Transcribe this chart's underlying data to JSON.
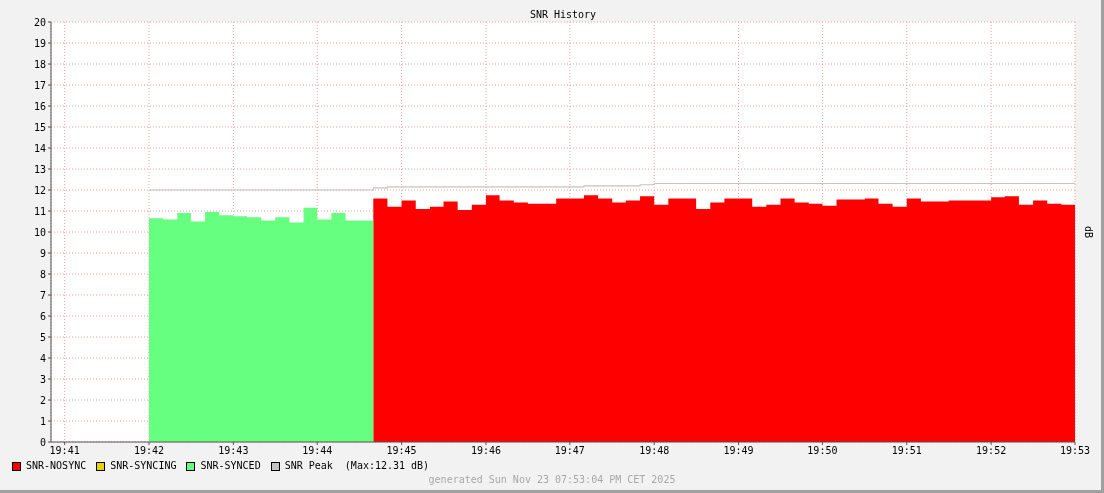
{
  "chart_data": {
    "type": "area",
    "title": "SNR History",
    "ylabel": "dB",
    "x": [
      19.7,
      19.7028,
      19.7056,
      19.7083,
      19.7111,
      19.7139,
      19.7167,
      19.7194,
      19.7222,
      19.725,
      19.7278,
      19.7306,
      19.7333,
      19.7361,
      19.7389,
      19.7417,
      19.7444,
      19.7472,
      19.75,
      19.7528,
      19.7556,
      19.7583,
      19.7611,
      19.7639,
      19.7667,
      19.7694,
      19.7722,
      19.775,
      19.7778,
      19.7806,
      19.7833,
      19.7861,
      19.7889,
      19.7917,
      19.7944,
      19.7972,
      19.8,
      19.8028,
      19.8056,
      19.8083,
      19.8111,
      19.8139,
      19.8167,
      19.8194,
      19.8222,
      19.825,
      19.8278,
      19.8306,
      19.8333,
      19.8361,
      19.8389,
      19.8417,
      19.8444,
      19.8472,
      19.85,
      19.8528,
      19.8556,
      19.8583,
      19.8611,
      19.8639,
      19.8667,
      19.8694,
      19.8722,
      19.875,
      19.8778,
      19.8806,
      19.8833
    ],
    "series": [
      {
        "name": "SNR-NOSYNC",
        "color": "#ff0000",
        "values": [
          null,
          null,
          null,
          null,
          null,
          null,
          null,
          null,
          null,
          null,
          null,
          null,
          null,
          null,
          null,
          null,
          11.6,
          11.2,
          11.5,
          11.1,
          11.2,
          11.45,
          11.05,
          11.3,
          11.75,
          11.5,
          11.4,
          11.35,
          11.35,
          11.6,
          11.6,
          11.75,
          11.6,
          11.4,
          11.5,
          11.7,
          11.3,
          11.6,
          11.6,
          11.1,
          11.4,
          11.6,
          11.6,
          11.2,
          11.3,
          11.6,
          11.4,
          11.35,
          11.25,
          11.55,
          11.55,
          11.6,
          11.35,
          11.2,
          11.6,
          11.45,
          11.45,
          11.5,
          11.5,
          11.5,
          11.65,
          11.7,
          11.3,
          11.5,
          11.35,
          11.3,
          11.3
        ]
      },
      {
        "name": "SNR-SYNCING",
        "color": "#e6d200",
        "values": [
          null,
          null,
          null,
          null,
          null,
          null,
          null,
          null,
          null,
          null,
          null,
          null,
          null,
          null,
          null,
          null,
          null,
          null,
          null,
          null,
          null,
          null,
          null,
          null,
          null,
          null,
          null,
          null,
          null,
          null,
          null,
          null,
          null,
          null,
          null,
          null,
          null,
          null,
          null,
          null,
          null,
          null,
          null,
          null,
          null,
          null,
          null,
          null,
          null,
          null,
          null,
          null,
          null,
          null,
          null,
          null,
          null,
          null,
          null,
          null,
          null,
          null,
          null,
          null,
          null,
          null,
          null
        ]
      },
      {
        "name": "SNR-SYNCED",
        "color": "#66ff80",
        "values": [
          10.65,
          10.6,
          10.9,
          10.5,
          10.95,
          10.8,
          10.75,
          10.7,
          10.55,
          10.7,
          10.45,
          11.15,
          10.6,
          10.9,
          10.55,
          10.55,
          10.55,
          null,
          null,
          null,
          null,
          null,
          null,
          null,
          null,
          null,
          null,
          null,
          null,
          null,
          null,
          null,
          null,
          null,
          null,
          null,
          null,
          null,
          null,
          null,
          null,
          null,
          null,
          null,
          null,
          null,
          null,
          null,
          null,
          null,
          null,
          null,
          null,
          null,
          null,
          null,
          null,
          null,
          null,
          null,
          null,
          null,
          null,
          null,
          null,
          null,
          null
        ]
      },
      {
        "name": "SNR Peak",
        "color": "#c4c4c4",
        "type": "step",
        "values": [
          12.0,
          12.0,
          12.0,
          12.0,
          12.0,
          12.0,
          12.0,
          12.0,
          12.0,
          12.0,
          12.0,
          12.0,
          12.0,
          12.0,
          12.0,
          12.0,
          12.1,
          12.15,
          12.15,
          12.15,
          12.15,
          12.15,
          12.15,
          12.15,
          12.15,
          12.15,
          12.15,
          12.15,
          12.15,
          12.15,
          12.15,
          12.2,
          12.2,
          12.2,
          12.2,
          12.25,
          12.31,
          12.31,
          12.31,
          12.31,
          12.31,
          12.31,
          12.31,
          12.31,
          12.31,
          12.31,
          12.31,
          12.31,
          12.31,
          12.31,
          12.31,
          12.31,
          12.31,
          12.31,
          12.31,
          12.31,
          12.31,
          12.31,
          12.31,
          12.31,
          12.31,
          12.31,
          12.31,
          12.31,
          12.31,
          12.31,
          12.31
        ]
      }
    ],
    "xlim": [
      19.6806,
      19.8833
    ],
    "xticks": [
      {
        "value": 19.6833,
        "label": "19:41"
      },
      {
        "value": 19.7,
        "label": "19:42"
      },
      {
        "value": 19.7167,
        "label": "19:43"
      },
      {
        "value": 19.7333,
        "label": "19:44"
      },
      {
        "value": 19.75,
        "label": "19:45"
      },
      {
        "value": 19.7667,
        "label": "19:46"
      },
      {
        "value": 19.7833,
        "label": "19:47"
      },
      {
        "value": 19.8,
        "label": "19:48"
      },
      {
        "value": 19.8167,
        "label": "19:49"
      },
      {
        "value": 19.8333,
        "label": "19:50"
      },
      {
        "value": 19.85,
        "label": "19:51"
      },
      {
        "value": 19.8667,
        "label": "19:52"
      },
      {
        "value": 19.8833,
        "label": "19:53"
      }
    ],
    "ylim": [
      0,
      20
    ],
    "yticks": [
      0,
      1,
      2,
      3,
      4,
      5,
      6,
      7,
      8,
      9,
      10,
      11,
      12,
      13,
      14,
      15,
      16,
      17,
      18,
      19,
      20
    ],
    "grid": true,
    "legend": "bottom",
    "annotations": [
      "(Max:12.31 dB)",
      "generated Sun Nov 23 07:53:04 PM CET 2025"
    ]
  }
}
